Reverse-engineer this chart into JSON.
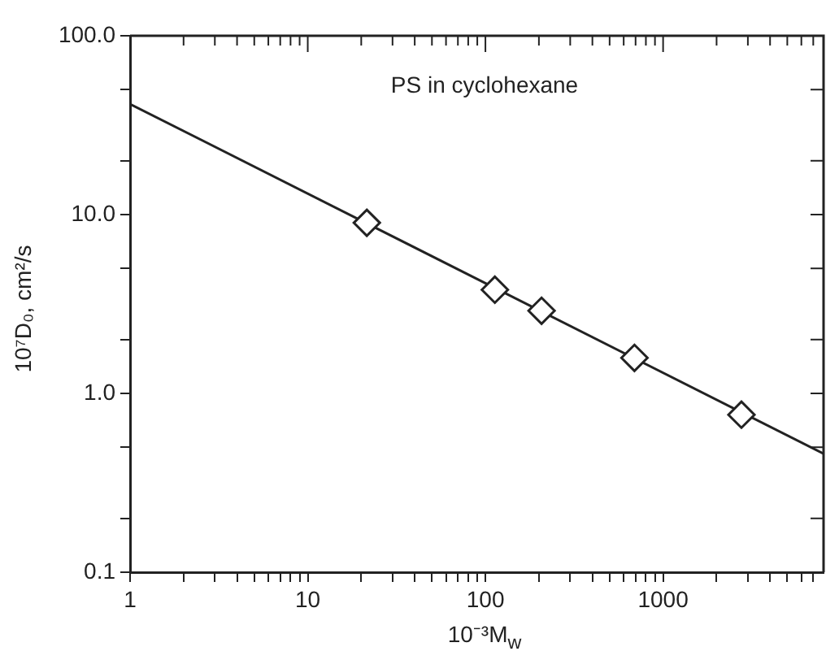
{
  "chart_data": {
    "type": "line",
    "annotations": [
      "PS in cyclohexane"
    ],
    "xlabel": "10⁻³M$_{w}$",
    "ylabel": "10⁷D₀, cm²/s",
    "log": "xy",
    "xlim": [
      1,
      8000
    ],
    "ylim": [
      0.1,
      100
    ],
    "xticks": [
      1,
      {
        "value": 2,
        "label": null
      },
      {
        "value": 3,
        "label": null
      },
      {
        "value": 4,
        "label": null
      },
      {
        "value": 5,
        "label": null
      },
      {
        "value": 6,
        "label": null
      },
      {
        "value": 7,
        "label": null
      },
      {
        "value": 8,
        "label": null
      },
      {
        "value": 9,
        "label": null
      },
      10,
      {
        "value": 20,
        "label": null
      },
      {
        "value": 30,
        "label": null
      },
      {
        "value": 40,
        "label": null
      },
      {
        "value": 50,
        "label": null
      },
      {
        "value": 60,
        "label": null
      },
      {
        "value": 70,
        "label": null
      },
      {
        "value": 80,
        "label": null
      },
      {
        "value": 90,
        "label": null
      },
      100,
      {
        "value": 200,
        "label": null
      },
      {
        "value": 300,
        "label": null
      },
      {
        "value": 400,
        "label": null
      },
      {
        "value": 500,
        "label": null
      },
      {
        "value": 600,
        "label": null
      },
      {
        "value": 700,
        "label": null
      },
      {
        "value": 800,
        "label": null
      },
      {
        "value": 900,
        "label": null
      },
      1000,
      {
        "value": 2000,
        "label": null
      },
      {
        "value": 3000,
        "label": null
      },
      {
        "value": 4000,
        "label": null
      },
      {
        "value": 5000,
        "label": null
      },
      {
        "value": 6000,
        "label": null
      },
      {
        "value": 7000,
        "label": null
      }
    ],
    "yticks": [
      0.1,
      {
        "value": 0.2,
        "label": null
      },
      {
        "value": 0.5,
        "label": null
      },
      {
        "value": 1,
        "label": "1.0"
      },
      {
        "value": 2,
        "label": null
      },
      {
        "value": 5,
        "label": null
      },
      {
        "value": 10,
        "label": "10.0"
      },
      {
        "value": 20,
        "label": null
      },
      {
        "value": 50,
        "label": null
      },
      {
        "value": 100,
        "label": "100.0"
      }
    ],
    "grid": false,
    "legend": false,
    "series": [
      {
        "type": "scatter",
        "marker": "diamond",
        "color": "#222222",
        "x": [
          21.5,
          113,
          207,
          690,
          2760
        ],
        "values": [
          9.0,
          3.8,
          2.9,
          1.58,
          0.76
        ]
      },
      {
        "type": "line",
        "marker": "none",
        "color": "#222222",
        "x": [
          1,
          8000
        ],
        "values": [
          41.5,
          0.46
        ]
      }
    ]
  }
}
